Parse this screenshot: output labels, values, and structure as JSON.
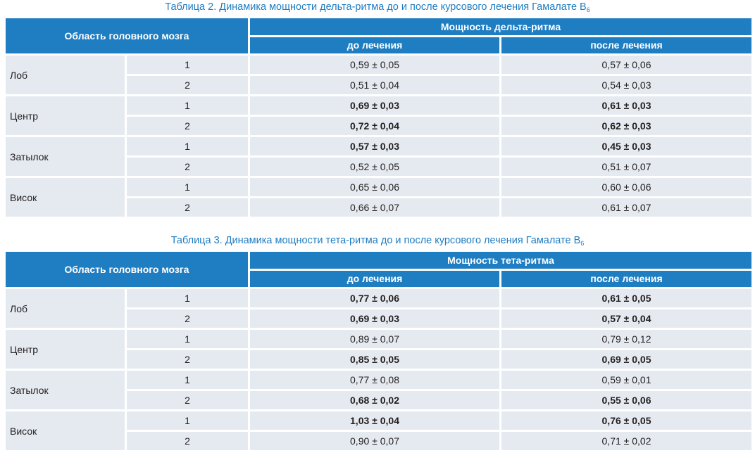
{
  "tables": [
    {
      "caption": {
        "text": "Таблица 2.  Динамика мощности дельта-ритма до и после курсового лечения Гамалате B",
        "sub": "6"
      },
      "header": {
        "region": "Область головного мозга",
        "span": "Мощность дельта-ритма",
        "before": "до лечения",
        "after": "после лечения"
      },
      "groups": [
        {
          "region": "Лоб",
          "rows": [
            {
              "n": "1",
              "before": "0,59 ± 0,05",
              "after": "0,57 ± 0,06",
              "bold_before": false,
              "bold_after": false
            },
            {
              "n": "2",
              "before": "0,51 ± 0,04",
              "after": "0,54 ± 0,03",
              "bold_before": false,
              "bold_after": false
            }
          ]
        },
        {
          "region": "Центр",
          "rows": [
            {
              "n": "1",
              "before": "0,69 ± 0,03",
              "after": "0,61 ± 0,03",
              "bold_before": true,
              "bold_after": true
            },
            {
              "n": "2",
              "before": "0,72 ± 0,04",
              "after": "0,62 ± 0,03",
              "bold_before": true,
              "bold_after": true
            }
          ]
        },
        {
          "region": "Затылок",
          "rows": [
            {
              "n": "1",
              "before": "0,57 ± 0,03",
              "after": "0,45 ± 0,03",
              "bold_before": true,
              "bold_after": true
            },
            {
              "n": "2",
              "before": "0,52 ± 0,05",
              "after": "0,51 ± 0,07",
              "bold_before": false,
              "bold_after": false
            }
          ]
        },
        {
          "region": "Висок",
          "rows": [
            {
              "n": "1",
              "before": "0,65 ± 0,06",
              "after": "0,60 ± 0,06",
              "bold_before": false,
              "bold_after": false
            },
            {
              "n": "2",
              "before": "0,66 ± 0,07",
              "after": "0,61 ± 0,07",
              "bold_before": false,
              "bold_after": false
            }
          ]
        }
      ]
    },
    {
      "caption": {
        "text": "Таблица 3.  Динамика мощности тета-ритма до и после курсового лечения Гамалате B",
        "sub": "6"
      },
      "header": {
        "region": "Область головного мозга",
        "span": "Мощность тета-ритма",
        "before": "до лечения",
        "after": "после лечения"
      },
      "groups": [
        {
          "region": "Лоб",
          "rows": [
            {
              "n": "1",
              "before": "0,77 ± 0,06",
              "after": "0,61 ± 0,05",
              "bold_before": true,
              "bold_after": true
            },
            {
              "n": "2",
              "before": "0,69 ± 0,03",
              "after": "0,57 ± 0,04",
              "bold_before": true,
              "bold_after": true
            }
          ]
        },
        {
          "region": "Центр",
          "rows": [
            {
              "n": "1",
              "before": "0,89 ± 0,07",
              "after": "0,79 ± 0,12",
              "bold_before": false,
              "bold_after": false
            },
            {
              "n": "2",
              "before": "0,85 ± 0,05",
              "after": "0,69 ± 0,05",
              "bold_before": true,
              "bold_after": true
            }
          ]
        },
        {
          "region": "Затылок",
          "rows": [
            {
              "n": "1",
              "before": "0,77 ± 0,08",
              "after": "0,59 ± 0,01",
              "bold_before": false,
              "bold_after": false
            },
            {
              "n": "2",
              "before": "0,68 ± 0,02",
              "after": "0,55 ± 0,06",
              "bold_before": true,
              "bold_after": true
            }
          ]
        },
        {
          "region": "Висок",
          "rows": [
            {
              "n": "1",
              "before": "1,03 ± 0,04",
              "after": "0,76 ± 0,05",
              "bold_before": true,
              "bold_after": true
            },
            {
              "n": "2",
              "before": "0,90 ± 0,07",
              "after": "0,71 ± 0,02",
              "bold_before": false,
              "bold_after": false
            }
          ]
        }
      ]
    }
  ]
}
